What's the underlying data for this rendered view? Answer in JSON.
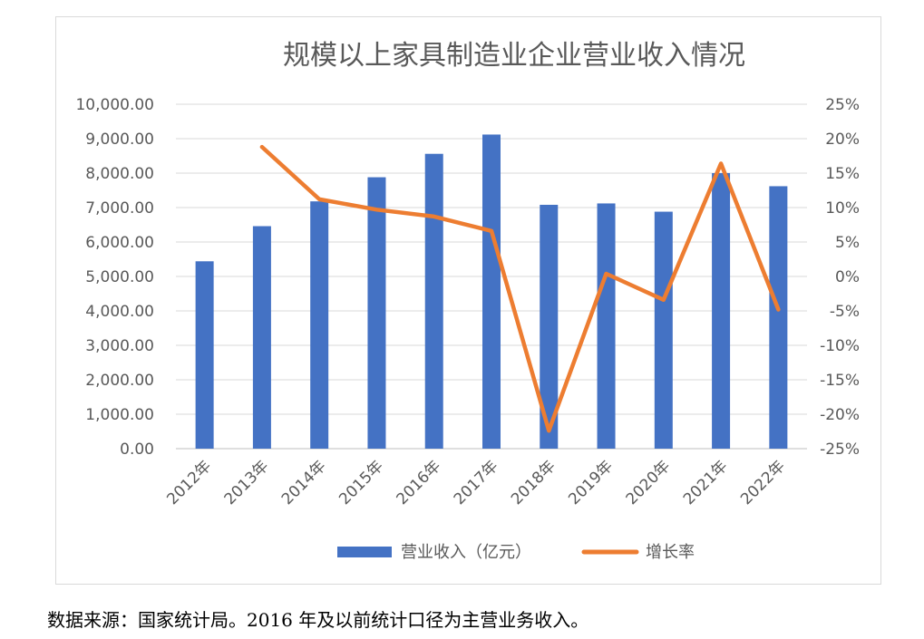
{
  "chart_data": {
    "type": "bar+line",
    "title": "规模以上家具制造业企业营业收入情况",
    "categories": [
      "2012年",
      "2013年",
      "2014年",
      "2015年",
      "2016年",
      "2017年",
      "2018年",
      "2019年",
      "2020年",
      "2021年",
      "2022年"
    ],
    "series": [
      {
        "name": "营业收入（亿元）",
        "type": "bar",
        "axis": "left",
        "color": "#4472C4",
        "values": [
          5440,
          6460,
          7180,
          7880,
          8560,
          9120,
          7080,
          7120,
          6880,
          8000,
          7620
        ]
      },
      {
        "name": "增长率",
        "type": "line",
        "axis": "right",
        "color": "#ED7D31",
        "values": [
          null,
          18.8,
          11.2,
          9.7,
          8.7,
          6.6,
          -22.4,
          0.4,
          -3.4,
          16.4,
          -4.8
        ]
      }
    ],
    "y_left": {
      "min": 0,
      "max": 10000,
      "step": 1000,
      "ticks": [
        "0.00",
        "1,000.00",
        "2,000.00",
        "3,000.00",
        "4,000.00",
        "5,000.00",
        "6,000.00",
        "7,000.00",
        "8,000.00",
        "9,000.00",
        "10,000.00"
      ]
    },
    "y_right": {
      "min": -25,
      "max": 25,
      "step": 5,
      "ticks": [
        "-25%",
        "-20%",
        "-15%",
        "-10%",
        "-5%",
        "0%",
        "5%",
        "10%",
        "15%",
        "20%",
        "25%"
      ]
    },
    "grid": true,
    "legend_position": "bottom"
  },
  "footer": {
    "source_note": "数据来源：国家统计局。2016 年及以前统计口径为主营业务收入。"
  }
}
